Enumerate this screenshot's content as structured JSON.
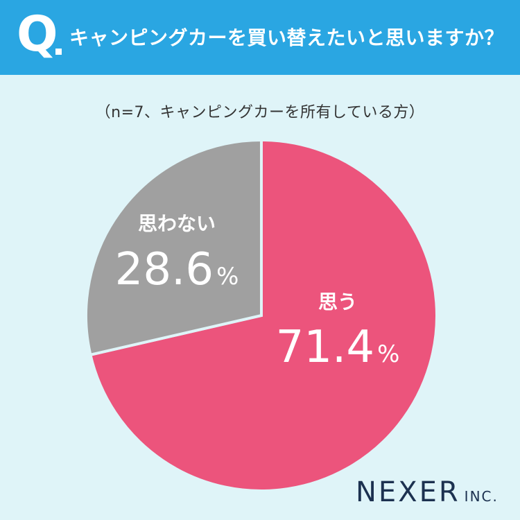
{
  "header": {
    "q_mark": "Q",
    "question": "キャンピングカーを買い替えたいと思いますか？"
  },
  "subtitle": "（n=7、キャンピングカーを所有している方）",
  "chart_data": {
    "type": "pie",
    "categories": [
      "思う",
      "思わない"
    ],
    "values": [
      71.4,
      28.6
    ],
    "value_labels": [
      "71.4",
      "28.6"
    ],
    "unit": "%",
    "colors": [
      "#ec547c",
      "#a0a0a0"
    ],
    "start_angle": "12 o'clock, clockwise"
  },
  "brand": {
    "name": "NEXER",
    "suffix": "INC."
  }
}
